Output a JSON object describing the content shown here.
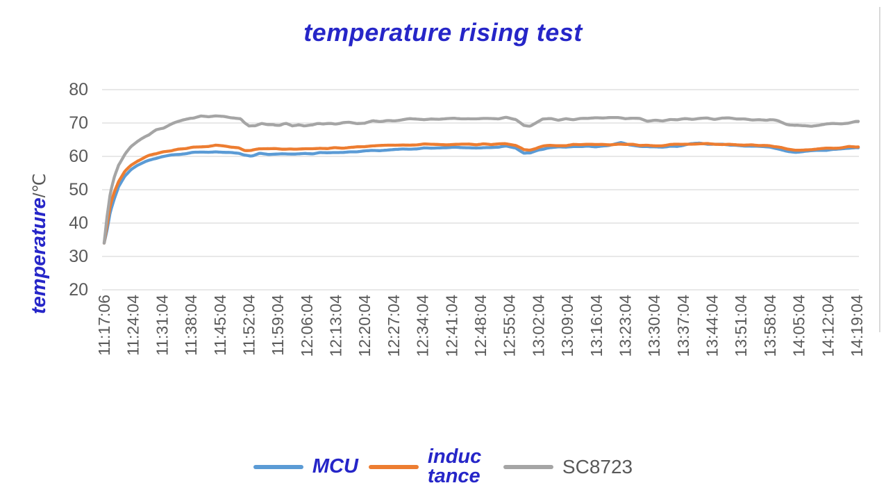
{
  "chart_data": {
    "type": "line",
    "title": "temperature rising test",
    "y_axis": {
      "title_main": "temperature",
      "title_unit": "/℃",
      "min": 20,
      "max": 80,
      "tick_step": 10,
      "ticks": [
        80,
        70,
        60,
        50,
        40,
        30,
        20
      ]
    },
    "x_axis": {
      "tick_interval_minutes": 7,
      "tick_labels": [
        "11:17:06",
        "11:24:04",
        "11:31:04",
        "11:38:04",
        "11:45:04",
        "11:52:04",
        "11:59:04",
        "12:06:04",
        "12:13:04",
        "12:20:04",
        "12:27:04",
        "12:34:04",
        "12:41:04",
        "12:48:04",
        "12:55:04",
        "13:02:04",
        "13:09:04",
        "13:16:04",
        "13:23:04",
        "13:30:04",
        "13:37:04",
        "13:44:04",
        "13:51:04",
        "13:58:04",
        "14:05:04",
        "14:12:04",
        "14:19:04"
      ]
    },
    "grid": "horizontal",
    "legend_position": "bottom",
    "colors": {
      "title_text": "#2626c8",
      "axis_text": "#595959",
      "gridline": "#d9d9d9"
    },
    "series": [
      {
        "name": "MCU",
        "legend_label": "MCU",
        "color": "#5B9BD5",
        "noise_amplitude": 0.18,
        "points": [
          [
            0,
            34
          ],
          [
            0.7,
            38
          ],
          [
            1.5,
            43.5
          ],
          [
            2.5,
            47.5
          ],
          [
            3.5,
            50.8
          ],
          [
            5,
            54
          ],
          [
            6.5,
            56
          ],
          [
            8,
            57.3
          ],
          [
            10,
            58.5
          ],
          [
            12,
            59.3
          ],
          [
            14,
            59.9
          ],
          [
            17,
            60.5
          ],
          [
            21,
            61.1
          ],
          [
            24,
            61.3
          ],
          [
            27,
            61.4
          ],
          [
            30,
            61.2
          ],
          [
            32.5,
            61.0
          ],
          [
            34,
            60.2
          ],
          [
            35.5,
            60.1
          ],
          [
            37.5,
            60.8
          ],
          [
            40,
            60.7
          ],
          [
            43,
            60.9
          ],
          [
            46,
            60.7
          ],
          [
            49,
            60.8
          ],
          [
            52,
            61.0
          ],
          [
            55,
            61.1
          ],
          [
            58,
            61.1
          ],
          [
            61,
            61.3
          ],
          [
            64,
            61.6
          ],
          [
            67,
            61.9
          ],
          [
            70,
            62.1
          ],
          [
            73,
            62.3
          ],
          [
            76,
            62.4
          ],
          [
            79,
            62.5
          ],
          [
            82,
            62.6
          ],
          [
            85,
            62.6
          ],
          [
            88,
            62.5
          ],
          [
            91,
            62.6
          ],
          [
            94,
            62.8
          ],
          [
            97,
            63.0
          ],
          [
            99.5,
            62.6
          ],
          [
            101.5,
            61.0
          ],
          [
            103,
            61.0
          ],
          [
            105,
            62.0
          ],
          [
            107,
            62.5
          ],
          [
            110,
            62.7
          ],
          [
            113,
            62.8
          ],
          [
            116,
            62.9
          ],
          [
            119,
            63.0
          ],
          [
            122,
            63.2
          ],
          [
            125,
            64.0
          ],
          [
            127,
            63.3
          ],
          [
            130,
            62.9
          ],
          [
            132,
            62.7
          ],
          [
            134,
            62.7
          ],
          [
            136,
            62.8
          ],
          [
            138,
            63.1
          ],
          [
            140,
            63.3
          ],
          [
            142,
            63.9
          ],
          [
            144,
            63.9
          ],
          [
            146,
            63.6
          ],
          [
            149,
            63.5
          ],
          [
            151,
            63.4
          ],
          [
            153,
            63.2
          ],
          [
            155,
            63.1
          ],
          [
            157,
            63.0
          ],
          [
            159,
            62.9
          ],
          [
            161,
            62.8
          ],
          [
            163,
            62.3
          ],
          [
            165,
            61.7
          ],
          [
            167,
            61.4
          ],
          [
            169,
            61.3
          ],
          [
            171,
            61.6
          ],
          [
            173,
            61.8
          ],
          [
            175,
            62.0
          ],
          [
            177,
            62.1
          ],
          [
            179,
            62.3
          ],
          [
            181,
            62.4
          ],
          [
            182.5,
            62.5
          ]
        ]
      },
      {
        "name": "inductance",
        "legend_label": "induc tance",
        "color": "#ED7D31",
        "noise_amplitude": 0.18,
        "points": [
          [
            0,
            34
          ],
          [
            0.7,
            39.5
          ],
          [
            1.5,
            45.5
          ],
          [
            2.5,
            49.5
          ],
          [
            3.5,
            52.5
          ],
          [
            5,
            55.5
          ],
          [
            6.5,
            57.3
          ],
          [
            8,
            58.5
          ],
          [
            10,
            59.8
          ],
          [
            12,
            60.7
          ],
          [
            14,
            61.3
          ],
          [
            17,
            62.0
          ],
          [
            21,
            62.7
          ],
          [
            24,
            63.0
          ],
          [
            27,
            63.2
          ],
          [
            30,
            63.0
          ],
          [
            32.5,
            62.7
          ],
          [
            34,
            61.9
          ],
          [
            35.5,
            61.8
          ],
          [
            37.5,
            62.3
          ],
          [
            40,
            62.2
          ],
          [
            43,
            62.3
          ],
          [
            46,
            62.2
          ],
          [
            49,
            62.3
          ],
          [
            52,
            62.4
          ],
          [
            55,
            62.5
          ],
          [
            58,
            62.5
          ],
          [
            61,
            62.7
          ],
          [
            64,
            63.0
          ],
          [
            67,
            63.2
          ],
          [
            70,
            63.4
          ],
          [
            73,
            63.5
          ],
          [
            76,
            63.5
          ],
          [
            79,
            63.6
          ],
          [
            82,
            63.6
          ],
          [
            85,
            63.6
          ],
          [
            88,
            63.5
          ],
          [
            91,
            63.6
          ],
          [
            94,
            63.7
          ],
          [
            97,
            63.8
          ],
          [
            99.5,
            63.4
          ],
          [
            101.5,
            62.1
          ],
          [
            103,
            62.0
          ],
          [
            105,
            62.7
          ],
          [
            107,
            63.1
          ],
          [
            110,
            63.3
          ],
          [
            113,
            63.4
          ],
          [
            116,
            63.5
          ],
          [
            119,
            63.6
          ],
          [
            122,
            63.6
          ],
          [
            125,
            63.7
          ],
          [
            127,
            63.6
          ],
          [
            130,
            63.4
          ],
          [
            132,
            63.2
          ],
          [
            134,
            63.2
          ],
          [
            136,
            63.3
          ],
          [
            138,
            63.5
          ],
          [
            140,
            63.5
          ],
          [
            142,
            63.6
          ],
          [
            144,
            63.7
          ],
          [
            146,
            63.7
          ],
          [
            149,
            63.7
          ],
          [
            151,
            63.6
          ],
          [
            153,
            63.5
          ],
          [
            155,
            63.4
          ],
          [
            157,
            63.3
          ],
          [
            159,
            63.3
          ],
          [
            161,
            63.2
          ],
          [
            163,
            62.8
          ],
          [
            165,
            62.2
          ],
          [
            167,
            61.9
          ],
          [
            169,
            61.8
          ],
          [
            171,
            62.0
          ],
          [
            173,
            62.2
          ],
          [
            175,
            62.4
          ],
          [
            177,
            62.5
          ],
          [
            179,
            62.7
          ],
          [
            181,
            62.9
          ],
          [
            182.5,
            63.0
          ]
        ]
      },
      {
        "name": "SC8723",
        "legend_label": "SC8723",
        "color": "#A5A5A5",
        "noise_amplitude": 0.3,
        "points": [
          [
            0,
            34
          ],
          [
            0.7,
            42
          ],
          [
            1.5,
            49
          ],
          [
            2.5,
            54
          ],
          [
            3.5,
            57.5
          ],
          [
            5,
            60.5
          ],
          [
            6.5,
            62.8
          ],
          [
            8,
            64.3
          ],
          [
            10,
            66.0
          ],
          [
            12,
            67.4
          ],
          [
            14,
            68.5
          ],
          [
            17,
            70.0
          ],
          [
            19,
            70.8
          ],
          [
            21,
            71.5
          ],
          [
            23,
            71.8
          ],
          [
            25,
            72.0
          ],
          [
            27,
            72.0
          ],
          [
            29,
            71.9
          ],
          [
            31,
            71.6
          ],
          [
            33,
            71.2
          ],
          [
            34,
            69.8
          ],
          [
            35,
            68.9
          ],
          [
            36.5,
            69.0
          ],
          [
            38,
            69.9
          ],
          [
            39.5,
            69.3
          ],
          [
            41,
            69.6
          ],
          [
            42.5,
            69.3
          ],
          [
            44,
            69.9
          ],
          [
            45.5,
            69.3
          ],
          [
            47,
            69.7
          ],
          [
            48.5,
            68.9
          ],
          [
            50,
            69.5
          ],
          [
            51.5,
            69.9
          ],
          [
            53,
            69.7
          ],
          [
            55,
            70.0
          ],
          [
            57,
            69.8
          ],
          [
            59,
            70.1
          ],
          [
            61,
            70.0
          ],
          [
            63,
            70.2
          ],
          [
            65,
            70.7
          ],
          [
            67,
            70.5
          ],
          [
            69,
            70.7
          ],
          [
            71,
            70.8
          ],
          [
            73,
            71.0
          ],
          [
            75,
            71.1
          ],
          [
            77,
            71.2
          ],
          [
            80,
            71.2
          ],
          [
            83,
            71.3
          ],
          [
            86,
            71.2
          ],
          [
            89,
            71.2
          ],
          [
            92,
            71.3
          ],
          [
            95,
            71.4
          ],
          [
            97,
            71.5
          ],
          [
            99.5,
            71.0
          ],
          [
            101.5,
            69.2
          ],
          [
            103,
            69.0
          ],
          [
            104.5,
            70.0
          ],
          [
            106,
            70.9
          ],
          [
            108,
            71.1
          ],
          [
            110,
            71.1
          ],
          [
            113,
            71.2
          ],
          [
            116,
            71.3
          ],
          [
            119,
            71.3
          ],
          [
            122,
            71.4
          ],
          [
            125,
            71.5
          ],
          [
            127,
            71.4
          ],
          [
            129,
            71.2
          ],
          [
            131,
            70.8
          ],
          [
            133,
            70.6
          ],
          [
            135,
            70.5
          ],
          [
            137,
            70.9
          ],
          [
            139,
            71.1
          ],
          [
            141,
            71.2
          ],
          [
            143,
            71.2
          ],
          [
            145,
            71.3
          ],
          [
            147,
            71.3
          ],
          [
            149,
            71.4
          ],
          [
            151,
            71.5
          ],
          [
            153,
            71.3
          ],
          [
            155,
            71.2
          ],
          [
            157,
            71.0
          ],
          [
            159,
            71.0
          ],
          [
            161,
            71.0
          ],
          [
            163,
            70.5
          ],
          [
            165,
            69.5
          ],
          [
            167,
            69.1
          ],
          [
            169,
            69.0
          ],
          [
            171,
            69.3
          ],
          [
            173,
            69.5
          ],
          [
            175,
            69.7
          ],
          [
            177,
            69.8
          ],
          [
            179,
            70.0
          ],
          [
            181,
            70.2
          ],
          [
            182.5,
            70.3
          ]
        ]
      }
    ]
  }
}
